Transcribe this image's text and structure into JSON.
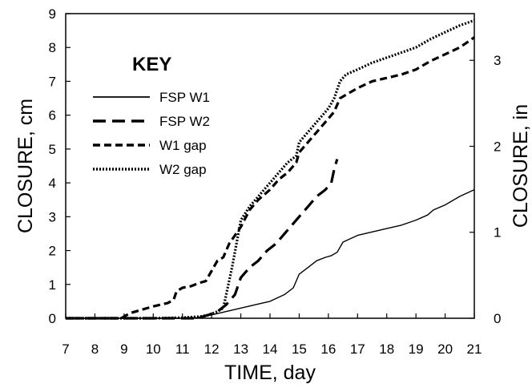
{
  "chart_data": {
    "type": "line",
    "title": "",
    "xlabel": "TIME, day",
    "ylabel": "CLOSURE, cm",
    "y2label": "CLOSURE, in",
    "xlim": [
      7,
      21
    ],
    "ylim": [
      0,
      9
    ],
    "y2lim": [
      0,
      3.543
    ],
    "grid": false,
    "x_ticks": [
      7,
      8,
      9,
      10,
      11,
      12,
      13,
      14,
      15,
      16,
      17,
      18,
      19,
      20,
      21
    ],
    "y_ticks": [
      0,
      1,
      2,
      3,
      4,
      5,
      6,
      7,
      8,
      9
    ],
    "y2_ticks": [
      0,
      1,
      2,
      3
    ],
    "legend": {
      "title": "KEY",
      "placement": "upper-left"
    },
    "series": [
      {
        "name": "FSP W1",
        "style": "solid",
        "color": "#000000",
        "x": [
          7,
          8,
          9,
          10,
          11,
          11.5,
          12,
          12.5,
          13,
          13.5,
          14,
          14.5,
          14.8,
          15,
          15.3,
          15.6,
          15.9,
          16.1,
          16.3,
          16.5,
          17,
          17.5,
          18,
          18.5,
          19,
          19.4,
          19.6,
          20,
          20.5,
          21
        ],
        "values": [
          0,
          0,
          0,
          0,
          0,
          0.02,
          0.1,
          0.2,
          0.3,
          0.4,
          0.5,
          0.7,
          0.9,
          1.3,
          1.5,
          1.7,
          1.8,
          1.85,
          1.95,
          2.25,
          2.45,
          2.55,
          2.65,
          2.75,
          2.9,
          3.05,
          3.2,
          3.35,
          3.6,
          3.8
        ]
      },
      {
        "name": "FSP W2",
        "style": "dash",
        "color": "#000000",
        "x": [
          7,
          8,
          9,
          10,
          11,
          11.5,
          11.9,
          12.2,
          12.5,
          12.8,
          13,
          13.3,
          13.6,
          13.9,
          14.2,
          14.5,
          14.8,
          15,
          15.3,
          15.6,
          15.9,
          16.1,
          16.2,
          16.3
        ],
        "values": [
          0,
          0,
          0,
          0,
          0,
          0,
          0.1,
          0.2,
          0.4,
          0.7,
          1.2,
          1.5,
          1.7,
          2.0,
          2.2,
          2.5,
          2.8,
          3.0,
          3.3,
          3.6,
          3.8,
          4.0,
          4.4,
          4.7
        ]
      },
      {
        "name": "W1 gap",
        "style": "short-dash",
        "color": "#000000",
        "x": [
          7,
          8,
          8.9,
          9.2,
          9.6,
          10,
          10.5,
          10.7,
          10.8,
          11,
          11.3,
          11.6,
          11.8,
          12,
          12.2,
          12.4,
          12.6,
          13,
          13.3,
          13.6,
          14,
          14.3,
          14.6,
          14.9,
          15,
          15.3,
          15.6,
          16,
          16.2,
          16.4,
          16.6,
          17,
          17.5,
          18,
          18.5,
          19,
          19.5,
          20,
          20.5,
          21
        ],
        "values": [
          0,
          0,
          0,
          0.15,
          0.25,
          0.35,
          0.45,
          0.55,
          0.8,
          0.9,
          0.95,
          1.05,
          1.1,
          1.4,
          1.7,
          1.8,
          2.2,
          2.7,
          3.2,
          3.5,
          3.8,
          4.1,
          4.3,
          4.6,
          4.9,
          5.2,
          5.5,
          5.9,
          6.1,
          6.5,
          6.6,
          6.8,
          7.0,
          7.1,
          7.2,
          7.35,
          7.6,
          7.8,
          8.0,
          8.3
        ]
      },
      {
        "name": "W2 gap",
        "style": "dotted",
        "color": "#000000",
        "x": [
          7,
          8,
          9,
          10,
          11,
          11.6,
          11.9,
          12.2,
          12.4,
          12.7,
          13,
          13.3,
          13.6,
          14,
          14.3,
          14.6,
          14.9,
          15,
          15.3,
          15.6,
          16,
          16.2,
          16.4,
          16.6,
          17,
          17.5,
          18,
          18.5,
          19,
          19.5,
          20,
          20.5,
          21
        ],
        "values": [
          0,
          0,
          0,
          0,
          0.02,
          0.05,
          0.1,
          0.2,
          0.3,
          1.5,
          2.9,
          3.3,
          3.6,
          4.0,
          4.3,
          4.6,
          4.8,
          5.2,
          5.5,
          5.8,
          6.2,
          6.5,
          7.0,
          7.2,
          7.35,
          7.55,
          7.7,
          7.85,
          8.0,
          8.25,
          8.45,
          8.65,
          8.8
        ]
      }
    ]
  }
}
